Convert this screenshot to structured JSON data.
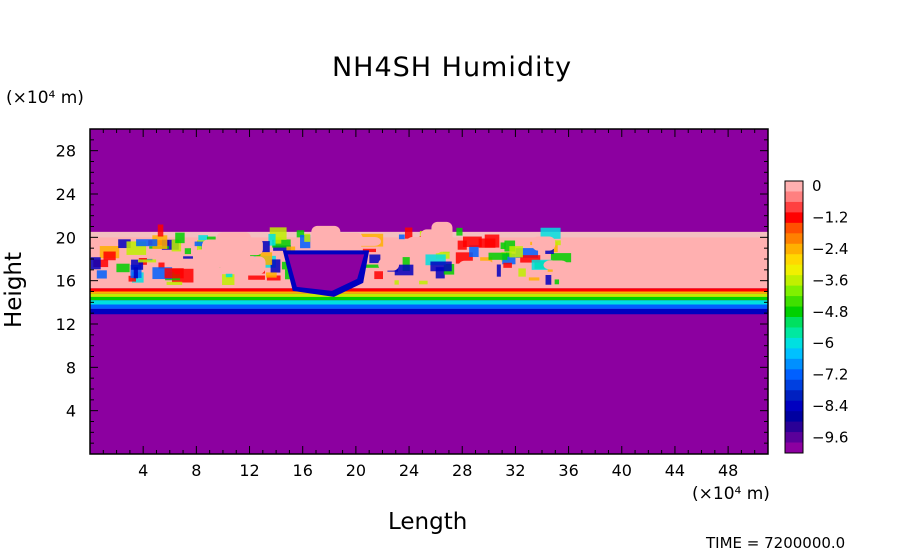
{
  "chart_data": {
    "type": "heatmap",
    "title": "NH4SH Humidity",
    "xlabel": "Length",
    "ylabel": "Height",
    "x_unit": "(×10⁴ m)",
    "y_unit": "(×10⁴ m)",
    "xlim": [
      0,
      51
    ],
    "ylim": [
      0,
      30
    ],
    "xticks": [
      "4",
      "8",
      "12",
      "16",
      "20",
      "24",
      "28",
      "32",
      "36",
      "40",
      "44",
      "48"
    ],
    "yticks": [
      "4",
      "8",
      "12",
      "16",
      "20",
      "24",
      "28"
    ],
    "background_value": -10,
    "layer": {
      "bottom": 13,
      "top": 20.5,
      "gradient_levels": [
        {
          "y": 12.9,
          "value": -9.6
        },
        {
          "y": 13.4,
          "value": -8.4
        },
        {
          "y": 13.8,
          "value": -7.2
        },
        {
          "y": 14.2,
          "value": -6
        },
        {
          "y": 14.5,
          "value": -4.8
        },
        {
          "y": 14.8,
          "value": -3.6
        },
        {
          "y": 15.0,
          "value": -2.4
        },
        {
          "y": 15.3,
          "value": -1.2
        },
        {
          "y": 16.0,
          "value": 0
        }
      ],
      "dry_pocket": {
        "x_range": [
          14.5,
          21
        ],
        "y_range": [
          14.5,
          18.8
        ],
        "value": -10
      },
      "mixed_region": {
        "x_range": [
          0,
          35
        ],
        "y_range": [
          15,
          20.3
        ]
      }
    },
    "colorbar": {
      "labels": [
        "0",
        "−1.2",
        "−2.4",
        "−3.6",
        "−4.8",
        "−6",
        "−7.2",
        "−8.4",
        "−9.6"
      ],
      "levels": [
        0,
        -0.4,
        -0.8,
        -1.2,
        -1.6,
        -2,
        -2.4,
        -2.8,
        -3.2,
        -3.6,
        -4,
        -4.4,
        -4.8,
        -5.2,
        -5.6,
        -6,
        -6.4,
        -6.8,
        -7.2,
        -7.6,
        -8,
        -8.4,
        -8.8,
        -9.2,
        -9.6,
        -10
      ],
      "colors": [
        "#ffb0b0",
        "#ff8080",
        "#ff4040",
        "#ff0000",
        "#ff5000",
        "#ff8000",
        "#ffb000",
        "#ffd800",
        "#f0f000",
        "#c0f000",
        "#80f000",
        "#40e000",
        "#00d000",
        "#00e060",
        "#00e8a0",
        "#00e0e0",
        "#00c0ff",
        "#0090ff",
        "#0060ff",
        "#0040e0",
        "#0020c0",
        "#0000c0",
        "#0000a0",
        "#2a0096",
        "#5a009a",
        "#8c00a0"
      ]
    },
    "colors": {
      "background": "#8c00a0",
      "saturated": "#ffb0b0"
    }
  },
  "footer": {
    "timestamp": "TIME = 7200000.0"
  }
}
